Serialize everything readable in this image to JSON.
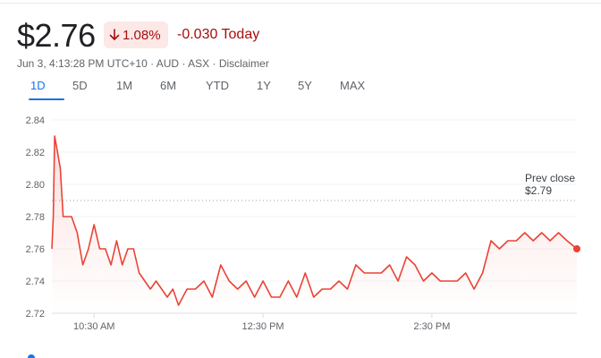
{
  "quote": {
    "price": "$2.76",
    "change_percent": "1.08%",
    "change_value": "-0.030 Today",
    "direction_icon": "arrow-down-icon",
    "timestamp": "Jun 3, 4:13:28 PM UTC+10",
    "currency": "AUD",
    "exchange": "ASX",
    "disclaimer": "Disclaimer",
    "separator": " · "
  },
  "colors": {
    "negative_text": "#a50e0e",
    "negative_badge_bg": "#fce8e6",
    "accent": "#1a73e8",
    "line": "#ea4335",
    "muted_text": "#5f6368"
  },
  "tabs": [
    {
      "label": "1D",
      "active": true
    },
    {
      "label": "5D",
      "active": false
    },
    {
      "label": "1M",
      "active": false
    },
    {
      "label": "6M",
      "active": false
    },
    {
      "label": "YTD",
      "active": false
    },
    {
      "label": "1Y",
      "active": false
    },
    {
      "label": "5Y",
      "active": false
    },
    {
      "label": "MAX",
      "active": false
    }
  ],
  "chart_data": {
    "type": "line",
    "title": "",
    "xlabel": "",
    "ylabel": "",
    "ylim": [
      2.72,
      2.84
    ],
    "y_ticks": [
      "2.84",
      "2.82",
      "2.80",
      "2.78",
      "2.76",
      "2.74",
      "2.72"
    ],
    "y_tick_values": [
      2.84,
      2.82,
      2.8,
      2.78,
      2.76,
      2.74,
      2.72
    ],
    "x_ticks": [
      "10:30 AM",
      "12:30 PM",
      "2:30 PM"
    ],
    "x_tick_values": [
      "10:30",
      "12:30",
      "14:30"
    ],
    "xlim": [
      "10:00",
      "16:13"
    ],
    "grid": "horizontal",
    "prev_close": {
      "label": "Prev close",
      "value_label": "$2.79",
      "value": 2.79
    },
    "last_point_marker": true,
    "series": [
      {
        "x": [
          "10:00",
          "10:01",
          "10:02",
          "10:04",
          "10:06",
          "10:08",
          "10:10",
          "10:14",
          "10:18",
          "10:22",
          "10:26",
          "10:30",
          "10:34",
          "10:38",
          "10:42",
          "10:46",
          "10:50",
          "10:54",
          "10:58",
          "11:02",
          "11:06",
          "11:10",
          "11:14",
          "11:18",
          "11:22",
          "11:26",
          "11:30",
          "11:36",
          "11:42",
          "11:48",
          "11:54",
          "12:00",
          "12:06",
          "12:12",
          "12:18",
          "12:24",
          "12:30",
          "12:36",
          "12:42",
          "12:48",
          "12:54",
          "13:00",
          "13:06",
          "13:12",
          "13:18",
          "13:24",
          "13:30",
          "13:36",
          "13:42",
          "13:48",
          "13:54",
          "14:00",
          "14:06",
          "14:12",
          "14:18",
          "14:24",
          "14:30",
          "14:36",
          "14:42",
          "14:48",
          "14:54",
          "15:00",
          "15:06",
          "15:12",
          "15:18",
          "15:24",
          "15:30",
          "15:36",
          "15:42",
          "15:48",
          "15:54",
          "16:00",
          "16:06",
          "16:13"
        ],
        "y": [
          2.76,
          2.78,
          2.83,
          2.82,
          2.81,
          2.78,
          2.78,
          2.78,
          2.77,
          2.75,
          2.76,
          2.775,
          2.76,
          2.76,
          2.75,
          2.765,
          2.75,
          2.76,
          2.76,
          2.745,
          2.74,
          2.735,
          2.74,
          2.735,
          2.73,
          2.735,
          2.725,
          2.735,
          2.735,
          2.74,
          2.73,
          2.75,
          2.74,
          2.735,
          2.74,
          2.73,
          2.74,
          2.73,
          2.73,
          2.74,
          2.73,
          2.745,
          2.73,
          2.735,
          2.735,
          2.74,
          2.735,
          2.75,
          2.745,
          2.745,
          2.745,
          2.75,
          2.74,
          2.755,
          2.75,
          2.74,
          2.745,
          2.74,
          2.74,
          2.74,
          2.745,
          2.735,
          2.745,
          2.765,
          2.76,
          2.765,
          2.765,
          2.77,
          2.765,
          2.77,
          2.765,
          2.77,
          2.765,
          2.76
        ]
      }
    ]
  }
}
